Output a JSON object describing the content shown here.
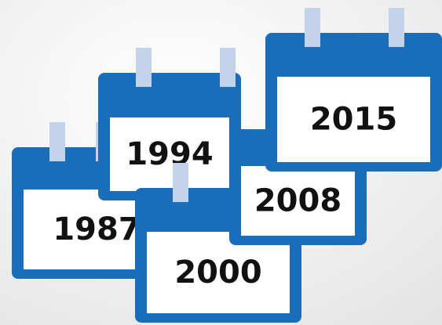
{
  "calendars": [
    {
      "year": "1987"
    },
    {
      "year": "1994"
    },
    {
      "year": "2000"
    },
    {
      "year": "2008"
    },
    {
      "year": "2015"
    }
  ]
}
